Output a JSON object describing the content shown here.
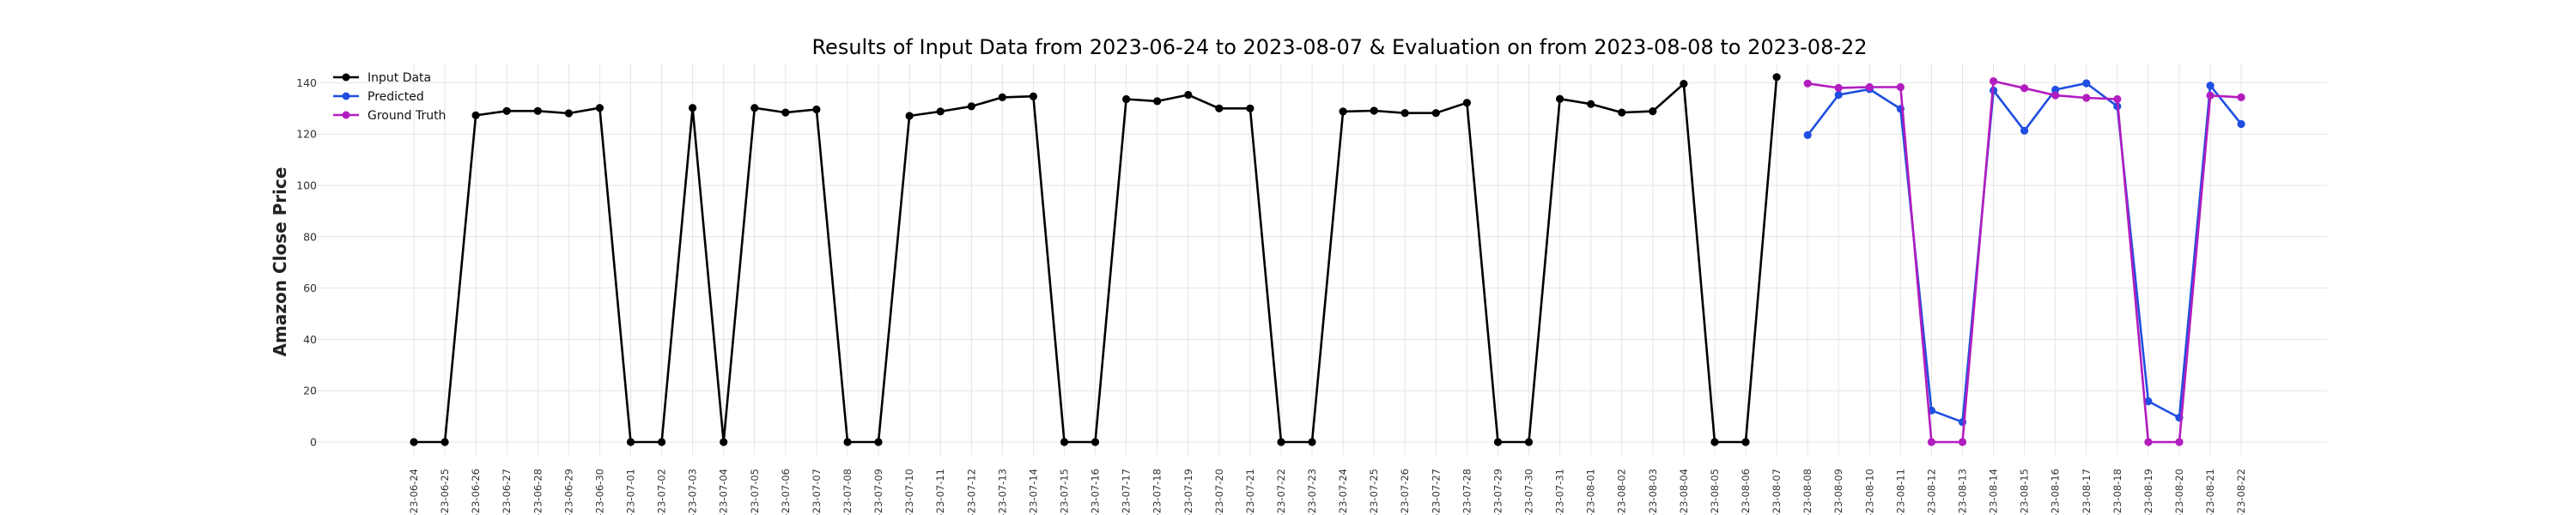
{
  "chart_data": {
    "type": "line",
    "title": "Results of Input Data from 2023-06-24 to 2023-08-07 & Evaluation on from 2023-08-08 to 2023-08-22",
    "xlabel": "",
    "ylabel": "Amazon Close Price",
    "ylim": [
      -8,
      148
    ],
    "yticks": [
      0,
      20,
      40,
      60,
      80,
      100,
      120,
      140
    ],
    "grid": true,
    "legend_position": "top-left",
    "x": [
      "2023-06-24",
      "2023-06-25",
      "2023-06-26",
      "2023-06-27",
      "2023-06-28",
      "2023-06-29",
      "2023-06-30",
      "2023-07-01",
      "2023-07-02",
      "2023-07-03",
      "2023-07-04",
      "2023-07-05",
      "2023-07-06",
      "2023-07-07",
      "2023-07-08",
      "2023-07-09",
      "2023-07-10",
      "2023-07-11",
      "2023-07-12",
      "2023-07-13",
      "2023-07-14",
      "2023-07-15",
      "2023-07-16",
      "2023-07-17",
      "2023-07-18",
      "2023-07-19",
      "2023-07-20",
      "2023-07-21",
      "2023-07-22",
      "2023-07-23",
      "2023-07-24",
      "2023-07-25",
      "2023-07-26",
      "2023-07-27",
      "2023-07-28",
      "2023-07-29",
      "2023-07-30",
      "2023-07-31",
      "2023-08-01",
      "2023-08-02",
      "2023-08-03",
      "2023-08-04",
      "2023-08-05",
      "2023-08-06",
      "2023-08-07",
      "2023-08-08",
      "2023-08-09",
      "2023-08-10",
      "2023-08-11",
      "2023-08-12",
      "2023-08-13",
      "2023-08-14",
      "2023-08-15",
      "2023-08-16",
      "2023-08-17",
      "2023-08-18",
      "2023-08-19",
      "2023-08-20",
      "2023-08-21",
      "2023-08-22"
    ],
    "xtick_labels": [
      "-23-06-24",
      "-23-06-25",
      "-23-06-26",
      "-23-06-27",
      "-23-06-28",
      "-23-06-29",
      "-23-06-30",
      "-23-07-01",
      "-23-07-02",
      "-23-07-03",
      "-23-07-04",
      "-23-07-05",
      "-23-07-06",
      "-23-07-07",
      "-23-07-08",
      "-23-07-09",
      "-23-07-10",
      "-23-07-11",
      "-23-07-12",
      "-23-07-13",
      "-23-07-14",
      "-23-07-15",
      "-23-07-16",
      "-23-07-17",
      "-23-07-18",
      "-23-07-19",
      "-23-07-20",
      "-23-07-21",
      "-23-07-22",
      "-23-07-23",
      "-23-07-24",
      "-23-07-25",
      "-23-07-26",
      "-23-07-27",
      "-23-07-28",
      "-23-07-29",
      "-23-07-30",
      "-23-07-31",
      "-23-08-01",
      "-23-08-02",
      "-23-08-03",
      "-23-08-04",
      "-23-08-05",
      "-23-08-06",
      "-23-08-07",
      "-23-08-08",
      "-23-08-09",
      "-23-08-10",
      "-23-08-11",
      "-23-08-12",
      "-23-08-13",
      "-23-08-14",
      "-23-08-15",
      "-23-08-16",
      "-23-08-17",
      "-23-08-18",
      "-23-08-19",
      "-23-08-20",
      "-23-08-21",
      "-23-08-22"
    ],
    "series": [
      {
        "name": "Input Data",
        "color": "#000000",
        "x": [
          "2023-06-24",
          "2023-06-25",
          "2023-06-26",
          "2023-06-27",
          "2023-06-28",
          "2023-06-29",
          "2023-06-30",
          "2023-07-01",
          "2023-07-02",
          "2023-07-03",
          "2023-07-04",
          "2023-07-05",
          "2023-07-06",
          "2023-07-07",
          "2023-07-08",
          "2023-07-09",
          "2023-07-10",
          "2023-07-11",
          "2023-07-12",
          "2023-07-13",
          "2023-07-14",
          "2023-07-15",
          "2023-07-16",
          "2023-07-17",
          "2023-07-18",
          "2023-07-19",
          "2023-07-20",
          "2023-07-21",
          "2023-07-22",
          "2023-07-23",
          "2023-07-24",
          "2023-07-25",
          "2023-07-26",
          "2023-07-27",
          "2023-07-28",
          "2023-07-29",
          "2023-07-30",
          "2023-07-31",
          "2023-08-01",
          "2023-08-02",
          "2023-08-03",
          "2023-08-04",
          "2023-08-05",
          "2023-08-06",
          "2023-08-07"
        ],
        "values": [
          0,
          0,
          127.3,
          129.0,
          129.0,
          128.1,
          130.2,
          0,
          0,
          130.2,
          0,
          130.2,
          128.4,
          129.6,
          0,
          0,
          127.1,
          128.8,
          130.8,
          134.3,
          134.7,
          0,
          0,
          133.6,
          132.8,
          135.3,
          130.0,
          130.0,
          0,
          0,
          128.8,
          129.1,
          128.2,
          128.2,
          132.2,
          0,
          0,
          133.7,
          131.7,
          128.4,
          128.9,
          139.6,
          0,
          0,
          142.2
        ]
      },
      {
        "name": "Predicted",
        "color": "#1f4fe0",
        "x": [
          "2023-08-08",
          "2023-08-09",
          "2023-08-10",
          "2023-08-11",
          "2023-08-12",
          "2023-08-13",
          "2023-08-14",
          "2023-08-15",
          "2023-08-16",
          "2023-08-17",
          "2023-08-18",
          "2023-08-19",
          "2023-08-20",
          "2023-08-21",
          "2023-08-22"
        ],
        "values": [
          119.6,
          135.3,
          137.5,
          129.8,
          12.3,
          7.8,
          137.0,
          121.3,
          137.3,
          139.8,
          130.8,
          15.9,
          9.5,
          138.9,
          123.9
        ]
      },
      {
        "name": "Ground Truth",
        "color": "#b21dbf",
        "x": [
          "2023-08-08",
          "2023-08-09",
          "2023-08-10",
          "2023-08-11",
          "2023-08-12",
          "2023-08-13",
          "2023-08-14",
          "2023-08-15",
          "2023-08-16",
          "2023-08-17",
          "2023-08-18",
          "2023-08-19",
          "2023-08-20",
          "2023-08-21",
          "2023-08-22"
        ],
        "values": [
          139.7,
          138.0,
          138.3,
          138.3,
          0,
          0,
          140.6,
          137.9,
          135.1,
          134.1,
          133.6,
          0,
          0,
          135.0,
          134.3
        ]
      }
    ]
  }
}
